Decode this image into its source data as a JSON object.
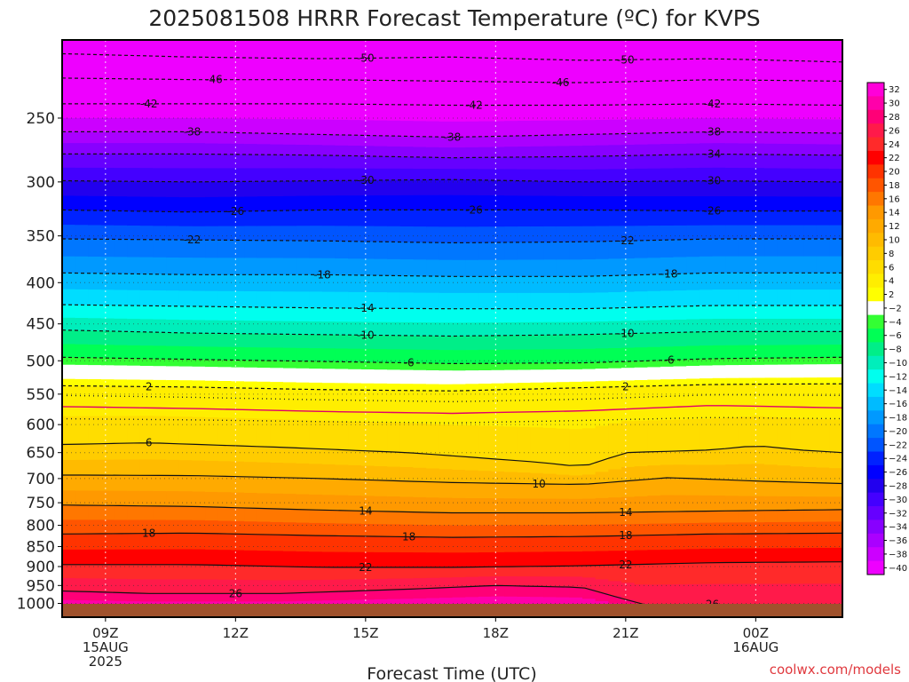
{
  "chart_data": {
    "type": "heatmap",
    "title": "2025081508 HRRR Forecast Temperature (ºC) for KVPS",
    "xlabel": "Forecast Time (UTC)",
    "ylabel": "",
    "credit": "coolwx.com/models",
    "x_ticks": [
      {
        "hour": 1,
        "lines": [
          "09Z",
          "15AUG",
          "2025"
        ]
      },
      {
        "hour": 4,
        "lines": [
          "12Z"
        ]
      },
      {
        "hour": 7,
        "lines": [
          "15Z"
        ]
      },
      {
        "hour": 10,
        "lines": [
          "18Z"
        ]
      },
      {
        "hour": 13,
        "lines": [
          "21Z"
        ]
      },
      {
        "hour": 16,
        "lines": [
          "00Z",
          "16AUG"
        ]
      }
    ],
    "xlim": [
      0,
      18
    ],
    "y_pressure_levels_hpa": [
      250,
      300,
      350,
      400,
      450,
      500,
      550,
      600,
      650,
      700,
      750,
      800,
      850,
      900,
      950,
      1000
    ],
    "y_scale": "log",
    "ylim_hpa": [
      200,
      1040
    ],
    "colorbar_ticks": [
      "32",
      "30",
      "28",
      "26",
      "24",
      "22",
      "20",
      "18",
      "16",
      "14",
      "12",
      "10",
      "8",
      "6",
      "4",
      "2",
      "−2",
      "−4",
      "−6",
      "−8",
      "−10",
      "−12",
      "−14",
      "−16",
      "−18",
      "−20",
      "−22",
      "−24",
      "−26",
      "−28",
      "−30",
      "−32",
      "−34",
      "−36",
      "−38",
      "−40"
    ],
    "colorbar_colors": [
      "#ff00d9",
      "#ff00aa",
      "#ff0077",
      "#ff1a4a",
      "#ff2a2a",
      "#ff0000",
      "#ff3300",
      "#ff5500",
      "#ff7700",
      "#ff9900",
      "#ffaa00",
      "#ffbb00",
      "#ffcc00",
      "#ffdd00",
      "#ffee00",
      "#ffff00",
      "#ffffff",
      "#33ff33",
      "#00ff55",
      "#00ee88",
      "#00eebb",
      "#00ffee",
      "#00ddff",
      "#00bbff",
      "#0099ff",
      "#0077ff",
      "#0055ff",
      "#0022ff",
      "#0000ff",
      "#2200ee",
      "#4400ff",
      "#6600ff",
      "#8800ff",
      "#aa00ff",
      "#cc00ff",
      "#ee00ff"
    ],
    "surface_color": "#a0522d",
    "contours": [
      {
        "temp": -50,
        "style": "dashed",
        "hours": [
          0,
          3,
          6,
          9,
          12,
          15,
          18
        ],
        "pressure": [
          208,
          210,
          211,
          210,
          212,
          211,
          213
        ],
        "labels": [
          {
            "hour": 7,
            "text": "-50"
          },
          {
            "hour": 13,
            "text": "-50"
          }
        ]
      },
      {
        "temp": -46,
        "style": "dashed",
        "hours": [
          0,
          3,
          6,
          9,
          12,
          15,
          18
        ],
        "pressure": [
          223,
          224,
          224,
          225,
          226,
          224,
          225
        ],
        "labels": [
          {
            "hour": 3.5,
            "text": "-46"
          },
          {
            "hour": 11.5,
            "text": "-46"
          }
        ]
      },
      {
        "temp": -42,
        "style": "dashed",
        "hours": [
          0,
          3,
          6,
          9,
          12,
          15,
          18
        ],
        "pressure": [
          240,
          240,
          240,
          241,
          241,
          240,
          241
        ],
        "labels": [
          {
            "hour": 2,
            "text": "-42"
          },
          {
            "hour": 9.5,
            "text": "-42"
          },
          {
            "hour": 15,
            "text": "-42"
          }
        ]
      },
      {
        "temp": -38,
        "style": "dashed",
        "hours": [
          0,
          3,
          6,
          9,
          12,
          15,
          18
        ],
        "pressure": [
          260,
          260,
          262,
          264,
          262,
          260,
          261
        ],
        "labels": [
          {
            "hour": 3,
            "text": "-38"
          },
          {
            "hour": 9,
            "text": "-38"
          },
          {
            "hour": 15,
            "text": "-38"
          }
        ]
      },
      {
        "temp": -34,
        "style": "dashed",
        "hours": [
          0,
          3,
          6,
          9,
          12,
          15,
          18
        ],
        "pressure": [
          277,
          277,
          278,
          280,
          279,
          277,
          278
        ],
        "labels": [
          {
            "hour": 15,
            "text": "-34"
          }
        ]
      },
      {
        "temp": -30,
        "style": "dashed",
        "hours": [
          0,
          3,
          6,
          9,
          12,
          15,
          18
        ],
        "pressure": [
          299,
          300,
          299,
          298,
          300,
          299,
          300
        ],
        "labels": [
          {
            "hour": 7,
            "text": "-30"
          },
          {
            "hour": 15,
            "text": "-30"
          }
        ]
      },
      {
        "temp": -26,
        "style": "dashed",
        "hours": [
          0,
          3,
          6,
          9,
          12,
          15,
          18
        ],
        "pressure": [
          325,
          327,
          325,
          325,
          325,
          326,
          326
        ],
        "labels": [
          {
            "hour": 4,
            "text": "-26"
          },
          {
            "hour": 9.5,
            "text": "-26"
          },
          {
            "hour": 15,
            "text": "-26"
          }
        ]
      },
      {
        "temp": -22,
        "style": "dashed",
        "hours": [
          0,
          3,
          6,
          9,
          12,
          15,
          18
        ],
        "pressure": [
          353,
          354,
          355,
          357,
          356,
          353,
          353
        ],
        "labels": [
          {
            "hour": 3,
            "text": "-22"
          },
          {
            "hour": 13,
            "text": "-22"
          }
        ]
      },
      {
        "temp": -18,
        "style": "dashed",
        "hours": [
          0,
          3,
          6,
          9,
          12,
          15,
          18
        ],
        "pressure": [
          389,
          391,
          391,
          393,
          393,
          389,
          389
        ],
        "labels": [
          {
            "hour": 6,
            "text": "-18"
          },
          {
            "hour": 14,
            "text": "-18"
          }
        ]
      },
      {
        "temp": -14,
        "style": "dashed",
        "hours": [
          0,
          3,
          6,
          9,
          12,
          15,
          18
        ],
        "pressure": [
          426,
          428,
          430,
          431,
          431,
          427,
          427
        ],
        "labels": [
          {
            "hour": 7,
            "text": "-14"
          }
        ]
      },
      {
        "temp": -10,
        "style": "dashed",
        "hours": [
          0,
          3,
          6,
          9,
          12,
          15,
          18
        ],
        "pressure": [
          458,
          462,
          464,
          466,
          464,
          460,
          460
        ],
        "labels": [
          {
            "hour": 7,
            "text": "-10"
          },
          {
            "hour": 13,
            "text": "-10"
          }
        ]
      },
      {
        "temp": -6,
        "style": "dashed",
        "hours": [
          0,
          3,
          6,
          9,
          12,
          15,
          18
        ],
        "pressure": [
          495,
          498,
          501,
          504,
          503,
          497,
          495
        ],
        "labels": [
          {
            "hour": 8,
            "text": "-6"
          },
          {
            "hour": 14,
            "text": "-6"
          }
        ]
      },
      {
        "temp": 2,
        "style": "dashed",
        "hours": [
          0,
          3,
          6,
          9,
          12,
          15,
          18
        ],
        "pressure": [
          537,
          539,
          543,
          545,
          540,
          535,
          534
        ],
        "labels": [
          {
            "hour": 2,
            "text": "2"
          },
          {
            "hour": 13,
            "text": "2"
          }
        ]
      },
      {
        "temp": 6,
        "style": "solid",
        "hours": [
          0,
          2,
          5,
          8,
          11,
          12,
          13,
          15,
          16,
          17,
          18
        ],
        "pressure": [
          635,
          632,
          640,
          650,
          668,
          677,
          650,
          645,
          637,
          645,
          650
        ],
        "labels": [
          {
            "hour": 2,
            "text": "6"
          }
        ]
      },
      {
        "temp": 10,
        "style": "solid",
        "hours": [
          0,
          3,
          6,
          9,
          12,
          14,
          16,
          18
        ],
        "pressure": [
          693,
          694,
          700,
          708,
          712,
          698,
          705,
          710
        ],
        "labels": [
          {
            "hour": 11,
            "text": "10"
          }
        ]
      },
      {
        "temp": 14,
        "style": "solid",
        "hours": [
          0,
          3,
          6,
          9,
          12,
          15,
          18
        ],
        "pressure": [
          755,
          758,
          766,
          772,
          772,
          768,
          765
        ],
        "labels": [
          {
            "hour": 7,
            "text": "14"
          },
          {
            "hour": 13,
            "text": "14"
          }
        ]
      },
      {
        "temp": 18,
        "style": "solid",
        "hours": [
          0,
          3,
          6,
          9,
          12,
          15,
          18
        ],
        "pressure": [
          820,
          818,
          824,
          828,
          826,
          820,
          818
        ],
        "labels": [
          {
            "hour": 2,
            "text": "18"
          },
          {
            "hour": 8,
            "text": "18"
          },
          {
            "hour": 13,
            "text": "18"
          }
        ]
      },
      {
        "temp": 22,
        "style": "solid",
        "hours": [
          0,
          3,
          6,
          9,
          12,
          15,
          18
        ],
        "pressure": [
          895,
          895,
          902,
          902,
          898,
          890,
          888
        ],
        "labels": [
          {
            "hour": 7,
            "text": "22"
          },
          {
            "hour": 13,
            "text": "22"
          }
        ]
      },
      {
        "temp": 26,
        "style": "solid",
        "hours": [
          0,
          2,
          5,
          8,
          10,
          12,
          13.4
        ],
        "pressure": [
          965,
          972,
          972,
          960,
          950,
          955,
          1002
        ],
        "labels": [
          {
            "hour": 4,
            "text": "26"
          },
          {
            "hour": 15,
            "text": "26"
          }
        ]
      }
    ],
    "freezing_line": {
      "temp": 0,
      "hours": [
        0,
        3,
        6,
        9,
        12,
        15,
        18
      ],
      "pressure": [
        570,
        573,
        578,
        581,
        577,
        568,
        572
      ]
    },
    "dotted_lines": [
      {
        "temp": 4,
        "hours": [
          0,
          3,
          6,
          9,
          12,
          15,
          18
        ],
        "pressure": [
          590,
          592,
          595,
          597,
          593,
          588,
          590
        ]
      },
      {
        "temp": 0,
        "hours": [
          0,
          3,
          6,
          9,
          12,
          15,
          18
        ],
        "pressure": [
          552,
          555,
          559,
          562,
          558,
          551,
          552
        ]
      }
    ]
  }
}
